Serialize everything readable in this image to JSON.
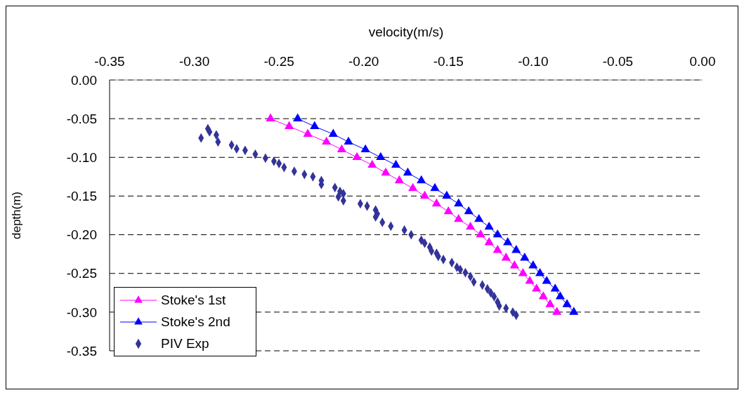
{
  "chart_data": {
    "type": "scatter",
    "xlabel": "velocity(m/s)",
    "ylabel": "depth(m)",
    "xlim": [
      -0.35,
      0
    ],
    "ylim": [
      -0.35,
      0
    ],
    "xticks": [
      {
        "value": -0.35,
        "label": "-0.35"
      },
      {
        "value": -0.3,
        "label": "-0.30"
      },
      {
        "value": -0.25,
        "label": "-0.25"
      },
      {
        "value": -0.2,
        "label": "-0.20"
      },
      {
        "value": -0.15,
        "label": "-0.15"
      },
      {
        "value": -0.1,
        "label": "-0.10"
      },
      {
        "value": -0.05,
        "label": "-0.05"
      },
      {
        "value": 0,
        "label": "0.00"
      }
    ],
    "yticks": [
      {
        "value": 0,
        "label": "0.00"
      },
      {
        "value": -0.05,
        "label": "-0.05"
      },
      {
        "value": -0.1,
        "label": "-0.10"
      },
      {
        "value": -0.15,
        "label": "-0.15"
      },
      {
        "value": -0.2,
        "label": "-0.20"
      },
      {
        "value": -0.25,
        "label": "-0.25"
      },
      {
        "value": -0.3,
        "label": "-0.30"
      },
      {
        "value": -0.35,
        "label": "-0.35"
      }
    ],
    "grid": "y",
    "legend": "bottom left",
    "series": [
      {
        "name": "Stoke's 1st",
        "type": "line",
        "marker": "triangle",
        "color": "#ff00ff",
        "x": [
          -0.255,
          -0.244,
          -0.233,
          -0.222,
          -0.213,
          -0.204,
          -0.195,
          -0.187,
          -0.179,
          -0.171,
          -0.164,
          -0.157,
          -0.15,
          -0.144,
          -0.137,
          -0.131,
          -0.126,
          -0.121,
          -0.116,
          -0.111,
          -0.106,
          -0.102,
          -0.098,
          -0.094,
          -0.09,
          -0.086
        ],
        "values": [
          -0.05,
          -0.06,
          -0.07,
          -0.08,
          -0.09,
          -0.1,
          -0.11,
          -0.12,
          -0.13,
          -0.14,
          -0.15,
          -0.16,
          -0.17,
          -0.18,
          -0.19,
          -0.2,
          -0.21,
          -0.22,
          -0.23,
          -0.24,
          -0.25,
          -0.26,
          -0.27,
          -0.28,
          -0.29,
          -0.3
        ]
      },
      {
        "name": "Stoke's 2nd",
        "type": "line",
        "marker": "triangle",
        "color": "#0000ff",
        "x": [
          -0.239,
          -0.229,
          -0.218,
          -0.209,
          -0.199,
          -0.19,
          -0.181,
          -0.174,
          -0.166,
          -0.158,
          -0.151,
          -0.144,
          -0.138,
          -0.132,
          -0.126,
          -0.121,
          -0.115,
          -0.11,
          -0.105,
          -0.1,
          -0.096,
          -0.092,
          -0.087,
          -0.084,
          -0.08,
          -0.076
        ],
        "values": [
          -0.05,
          -0.06,
          -0.07,
          -0.08,
          -0.09,
          -0.1,
          -0.11,
          -0.12,
          -0.13,
          -0.14,
          -0.15,
          -0.16,
          -0.17,
          -0.18,
          -0.19,
          -0.2,
          -0.21,
          -0.22,
          -0.23,
          -0.24,
          -0.25,
          -0.26,
          -0.27,
          -0.28,
          -0.29,
          -0.3
        ]
      },
      {
        "name": "PIV Exp",
        "marker": "diamond",
        "color": "#333399",
        "x": [
          -0.296,
          -0.292,
          -0.291,
          -0.287,
          -0.286,
          -0.278,
          -0.275,
          -0.27,
          -0.264,
          -0.258,
          -0.253,
          -0.25,
          -0.247,
          -0.241,
          -0.235,
          -0.23,
          -0.225,
          -0.225,
          -0.217,
          -0.214,
          -0.212,
          -0.215,
          -0.212,
          -0.202,
          -0.198,
          -0.193,
          -0.192,
          -0.193,
          -0.189,
          -0.184,
          -0.176,
          -0.172,
          -0.166,
          -0.164,
          -0.161,
          -0.16,
          -0.157,
          -0.156,
          -0.153,
          -0.148,
          -0.145,
          -0.143,
          -0.14,
          -0.137,
          -0.135,
          -0.13,
          -0.127,
          -0.125,
          -0.123,
          -0.121,
          -0.12,
          -0.116,
          -0.112,
          -0.11
        ],
        "values": [
          -0.075,
          -0.063,
          -0.067,
          -0.071,
          -0.08,
          -0.084,
          -0.089,
          -0.091,
          -0.096,
          -0.101,
          -0.105,
          -0.108,
          -0.113,
          -0.118,
          -0.122,
          -0.125,
          -0.13,
          -0.135,
          -0.139,
          -0.144,
          -0.147,
          -0.151,
          -0.156,
          -0.16,
          -0.163,
          -0.168,
          -0.173,
          -0.177,
          -0.184,
          -0.189,
          -0.194,
          -0.2,
          -0.207,
          -0.211,
          -0.216,
          -0.221,
          -0.224,
          -0.228,
          -0.232,
          -0.236,
          -0.242,
          -0.245,
          -0.249,
          -0.254,
          -0.261,
          -0.265,
          -0.27,
          -0.275,
          -0.28,
          -0.287,
          -0.292,
          -0.295,
          -0.3,
          -0.304
        ]
      }
    ]
  }
}
